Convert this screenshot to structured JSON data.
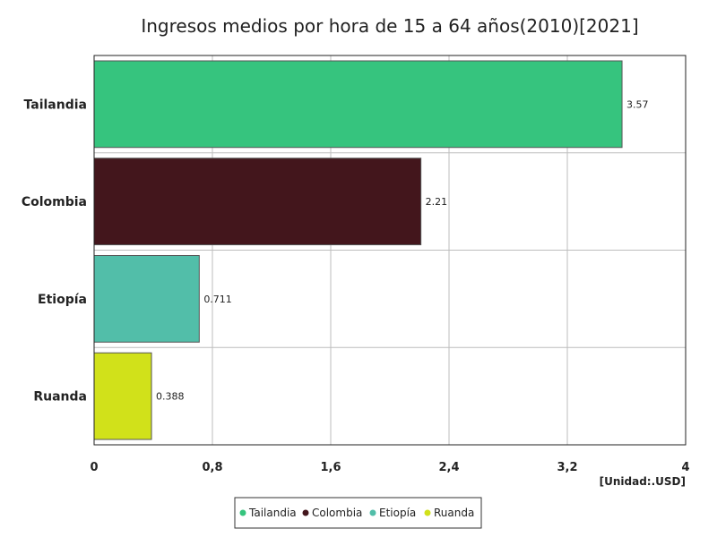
{
  "chart_data": {
    "type": "bar",
    "orientation": "horizontal",
    "title": "Ingresos medios por hora de 15 a 64 años(2010)[2021]",
    "unit_label": "[Unidad:.USD]",
    "categories": [
      "Tailandia",
      "Colombia",
      "Etiopía",
      "Ruanda"
    ],
    "values": [
      3.57,
      2.21,
      0.711,
      0.388
    ],
    "value_labels": [
      "3.57",
      "2.21",
      "0.711",
      "0.388"
    ],
    "colors": [
      "#36c47e",
      "#43161c",
      "#52bea9",
      "#d1e11a"
    ],
    "xlim": [
      0,
      4
    ],
    "x_ticks": [
      0,
      0.8,
      1.6,
      2.4,
      3.2,
      4
    ],
    "x_tick_labels": [
      "0",
      "0,8",
      "1,6",
      "2,4",
      "3,2",
      "4"
    ],
    "grid": true,
    "legend_position": "bottom-center",
    "legend": [
      "Tailandia",
      "Colombia",
      "Etiopía",
      "Ruanda"
    ]
  }
}
